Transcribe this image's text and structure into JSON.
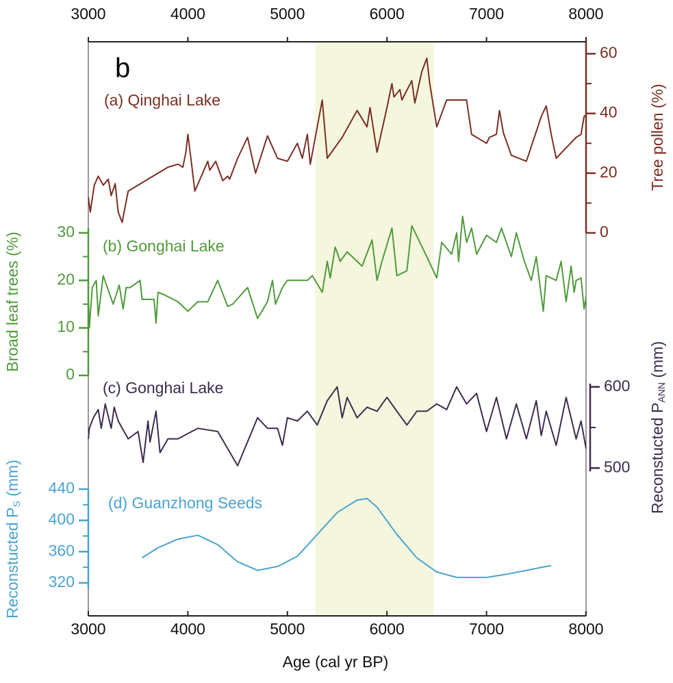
{
  "chart_data": {
    "type": "line",
    "panel_label": "b",
    "xlabel": "Age (cal yr BP)",
    "xlim": [
      3000,
      8000
    ],
    "xticks": [
      3000,
      4000,
      5000,
      6000,
      7000,
      8000
    ],
    "highlight": {
      "range": [
        5280,
        6470
      ],
      "color": "#f4f6de"
    },
    "series": [
      {
        "name": "(a) Qinghai Lake",
        "color": "#7a2e22",
        "axis_side": "right",
        "y_label": [
          "Tree pollen (%)"
        ],
        "ylim": [
          0,
          64
        ],
        "yticks": [
          0,
          20,
          40,
          60
        ],
        "yminorticks": [
          10,
          30,
          50
        ],
        "x": [
          3000,
          3020,
          3060,
          3100,
          3150,
          3200,
          3230,
          3270,
          3300,
          3340,
          3400,
          3600,
          3800,
          3900,
          3950,
          3980,
          4000,
          4030,
          4070,
          4200,
          4220,
          4280,
          4350,
          4400,
          4420,
          4500,
          4600,
          4680,
          4800,
          4900,
          5000,
          5100,
          5150,
          5200,
          5230,
          5280,
          5350,
          5400,
          5550,
          5700,
          5800,
          5830,
          5900,
          6000,
          6050,
          6070,
          6130,
          6150,
          6250,
          6280,
          6350,
          6400,
          6430,
          6500,
          6600,
          6800,
          6850,
          7000,
          7030,
          7100,
          7130,
          7170,
          7250,
          7400,
          7550,
          7600,
          7650,
          7700,
          7800,
          7900,
          7950,
          7980,
          8000
        ],
        "values": [
          12,
          7,
          16,
          19,
          16,
          18,
          12.5,
          16.5,
          7,
          3.5,
          14,
          18,
          22,
          23,
          22,
          27,
          33,
          25,
          14,
          24,
          21,
          24,
          17.5,
          19,
          18,
          25,
          32,
          20,
          32.5,
          25,
          24,
          30,
          25,
          33,
          23,
          32,
          44.5,
          25,
          32,
          41,
          35.5,
          42,
          27,
          42,
          50,
          45.5,
          48,
          44.5,
          51,
          43.5,
          54,
          58.5,
          50,
          35.5,
          44.5,
          44.5,
          33,
          30,
          32,
          33,
          41,
          33.5,
          26,
          24,
          39,
          42.5,
          33,
          25,
          28.5,
          32,
          33,
          39,
          39.5
        ]
      },
      {
        "name": "(b) Gonghai Lake",
        "color": "#4f9a3a",
        "axis_side": "left",
        "y_label": [
          "Broad leaf trees (%)"
        ],
        "ylim": [
          0,
          31
        ],
        "yticks": [
          0,
          10,
          20,
          30
        ],
        "yminorticks": [
          5,
          15,
          25
        ],
        "x": [
          3000,
          3010,
          3040,
          3080,
          3100,
          3150,
          3250,
          3310,
          3350,
          3380,
          3420,
          3520,
          3540,
          3660,
          3680,
          3700,
          3760,
          3900,
          4000,
          4100,
          4200,
          4300,
          4400,
          4450,
          4600,
          4700,
          4800,
          4850,
          4880,
          4950,
          5000,
          5200,
          5250,
          5350,
          5400,
          5430,
          5480,
          5530,
          5600,
          5650,
          5750,
          5850,
          5900,
          5950,
          6050,
          6100,
          6200,
          6250,
          6400,
          6500,
          6550,
          6650,
          6700,
          6720,
          6760,
          6800,
          6850,
          6900,
          7000,
          7100,
          7150,
          7250,
          7300,
          7380,
          7450,
          7500,
          7570,
          7600,
          7700,
          7750,
          7800,
          7850,
          7880,
          7900,
          7950,
          7980,
          8000
        ],
        "values": [
          17,
          10,
          18.5,
          20,
          12.5,
          21,
          15,
          19,
          14,
          18.5,
          18.5,
          20,
          16,
          16,
          11,
          17.5,
          17,
          15.5,
          13.5,
          15.5,
          15.5,
          20,
          14.5,
          15,
          18.5,
          12,
          15.5,
          20,
          15,
          18.5,
          20,
          20,
          21,
          17.5,
          24,
          20.5,
          27,
          24,
          26,
          25,
          23,
          28.5,
          20,
          24,
          31,
          21,
          22,
          31.5,
          25,
          20.5,
          28,
          25.5,
          30,
          24,
          33.5,
          28,
          31,
          25.5,
          29.5,
          28,
          31,
          25,
          30,
          24,
          20,
          25,
          13.5,
          21,
          20,
          24,
          15.5,
          23,
          17.5,
          20,
          20.5,
          14,
          16.5
        ]
      },
      {
        "name": "(c) Gonghai Lake",
        "color": "#3d2b4f",
        "axis_side": "right",
        "y_label": [
          "Reconstucted P",
          "ANN",
          " (mm)"
        ],
        "ylim": [
          496,
          604
        ],
        "yticks": [
          500,
          600
        ],
        "yminorticks": [
          550
        ],
        "x": [
          3000,
          3010,
          3050,
          3100,
          3130,
          3170,
          3230,
          3260,
          3300,
          3400,
          3500,
          3550,
          3600,
          3620,
          3680,
          3720,
          3800,
          3900,
          4100,
          4300,
          4500,
          4700,
          4800,
          4900,
          4950,
          5000,
          5100,
          5200,
          5300,
          5400,
          5500,
          5550,
          5600,
          5700,
          5800,
          5900,
          6000,
          6100,
          6200,
          6300,
          6400,
          6500,
          6600,
          6700,
          6800,
          6900,
          7000,
          7100,
          7200,
          7300,
          7400,
          7500,
          7550,
          7600,
          7700,
          7800,
          7900,
          7950,
          8000
        ],
        "values": [
          536,
          549,
          562,
          572,
          549,
          579,
          549,
          575,
          558,
          536,
          545,
          507,
          558,
          532,
          570,
          519,
          536,
          536,
          549,
          545,
          503,
          562,
          549,
          549,
          528,
          562,
          558,
          570,
          553,
          583,
          600,
          562,
          587,
          562,
          575,
          570,
          587,
          570,
          553,
          570,
          570,
          579,
          572,
          600,
          579,
          592,
          545,
          587,
          536,
          579,
          536,
          583,
          540,
          570,
          528,
          587,
          536,
          558,
          524
        ]
      },
      {
        "name": "(d) Guanzhong Seeds",
        "color": "#4aa3cf",
        "axis_side": "left",
        "y_label": [
          "Reconstucted P",
          "S",
          " (mm)"
        ],
        "ylim": [
          312,
          440
        ],
        "yticks": [
          320,
          360,
          400,
          440
        ],
        "yminorticks": [
          340,
          380,
          420
        ],
        "x": [
          3540,
          3700,
          3900,
          4100,
          4300,
          4500,
          4700,
          4900,
          5100,
          5300,
          5500,
          5700,
          5800,
          5900,
          6100,
          6300,
          6500,
          6700,
          7000,
          7200,
          7400,
          7600,
          7650
        ],
        "values": [
          352,
          365,
          376,
          381,
          369,
          347,
          336,
          341,
          354,
          382,
          410,
          426,
          428,
          417,
          382,
          352,
          334,
          327,
          327,
          331,
          336,
          341,
          342
        ]
      }
    ]
  }
}
